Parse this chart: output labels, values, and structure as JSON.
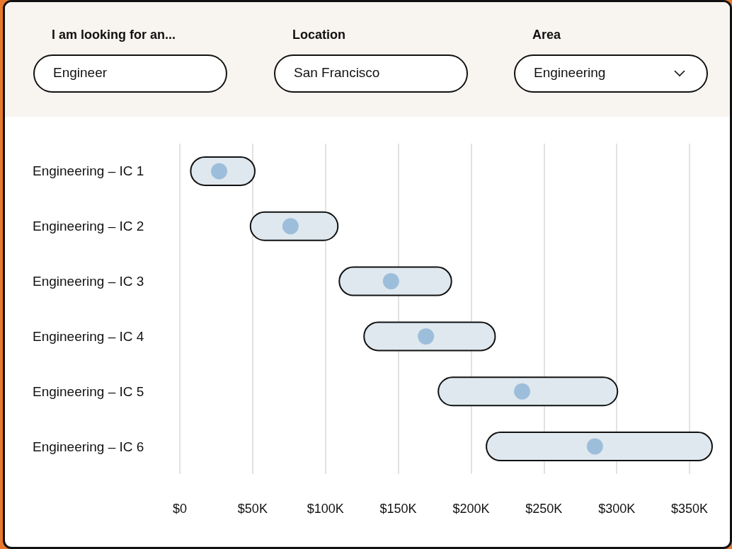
{
  "chart_data": {
    "type": "bar",
    "orientation": "horizontal",
    "categories": [
      "Engineering – IC 1",
      "Engineering – IC 2",
      "Engineering – IC 3",
      "Engineering – IC 4",
      "Engineering – IC 5",
      "Engineering – IC 6"
    ],
    "series": [
      {
        "type": "bar",
        "color": "#dfe8ee",
        "base": [
          7,
          48,
          109,
          126,
          177,
          210
        ],
        "values": [
          45,
          61,
          78,
          91,
          124,
          156
        ]
      },
      {
        "type": "scatter",
        "color": "#8cb3d6",
        "x": [
          "Engineering – IC 1",
          "Engineering – IC 2",
          "Engineering – IC 3",
          "Engineering – IC 4",
          "Engineering – IC 5",
          "Engineering – IC 6"
        ],
        "values": [
          27,
          76,
          145,
          169,
          235,
          285
        ]
      }
    ],
    "marker": "circle",
    "xlim": [
      0,
      366
    ],
    "xticks": [
      {
        "value": 0,
        "label": "$0"
      },
      {
        "value": 50,
        "label": "$50K"
      },
      {
        "value": 100,
        "label": "$100K"
      },
      {
        "value": 150,
        "label": "$150K"
      },
      {
        "value": 200,
        "label": "$200K"
      },
      {
        "value": 250,
        "label": "$250K"
      },
      {
        "value": 300,
        "label": "$300K"
      },
      {
        "value": 350,
        "label": "$350K"
      }
    ],
    "grid": "x",
    "annotations": [
      "I am looking for an...",
      "Engineer",
      "Location",
      "San Francisco",
      "Area",
      "Engineering"
    ]
  }
}
